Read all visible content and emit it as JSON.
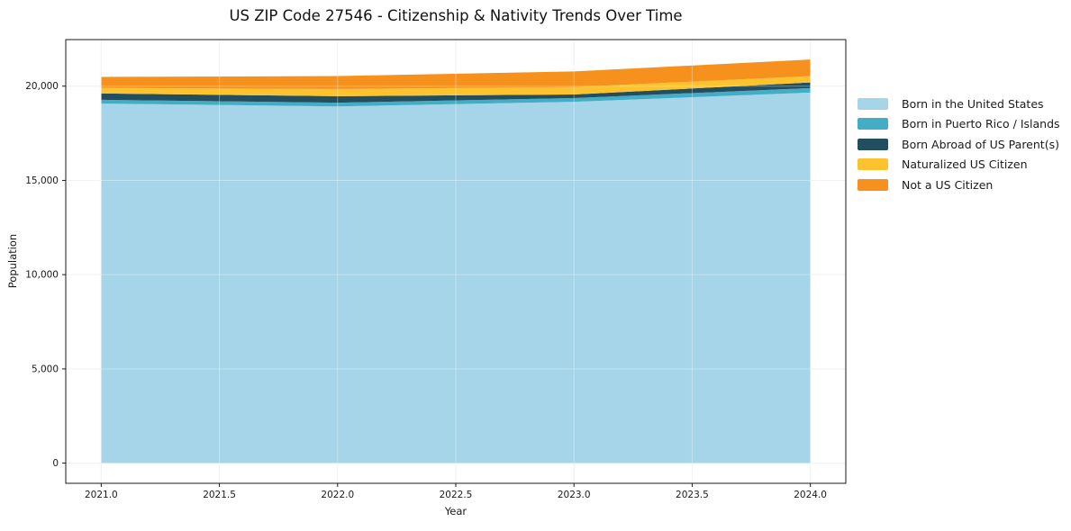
{
  "title": "US ZIP Code 27546 - Citizenship & Nativity Trends Over Time",
  "chart_data": {
    "type": "area",
    "stacked": true,
    "title": "US ZIP Code 27546 - Citizenship & Nativity Trends Over Time",
    "xlabel": "Year",
    "ylabel": "Population",
    "x": [
      2021,
      2022,
      2023,
      2024
    ],
    "series": [
      {
        "name": "Born in the United States",
        "color": "#a6d4e8",
        "values": [
          19075,
          18925,
          19170,
          19660
        ]
      },
      {
        "name": "Born in Puerto Rico / Islands",
        "color": "#43adc5",
        "values": [
          200,
          195,
          195,
          240
        ]
      },
      {
        "name": "Born Abroad of US Parent(s)",
        "color": "#234e60",
        "values": [
          340,
          345,
          195,
          295
        ]
      },
      {
        "name": "Naturalized US Citizen",
        "color": "#fcc32f",
        "values": [
          290,
          385,
          390,
          340
        ]
      },
      {
        "name": "Not a US Citizen",
        "color": "#f6911e",
        "values": [
          585,
          685,
          830,
          880
        ]
      }
    ],
    "stack_totals": [
      20490,
      20535,
      20780,
      21415
    ],
    "xticks": {
      "values": [
        2021.0,
        2021.5,
        2022.0,
        2022.5,
        2023.0,
        2023.5,
        2024.0
      ],
      "labels": [
        "2021.0",
        "2021.5",
        "2022.0",
        "2022.5",
        "2023.0",
        "2023.5",
        "2024.0"
      ]
    },
    "yticks": {
      "values": [
        0,
        5000,
        10000,
        15000,
        20000
      ],
      "labels": [
        "0",
        "5,000",
        "10,000",
        "15,000",
        "20,000"
      ]
    },
    "xlim": [
      2020.85,
      2024.15
    ],
    "ylim": [
      -1070,
      22470
    ],
    "grid": true,
    "legend_position": "right"
  },
  "colors": {
    "grid": "#eaeaea",
    "grid_over_area": "rgba(255,255,255,0.35)",
    "spine": "#1a1a1a",
    "tick": "#1a1a1a"
  }
}
